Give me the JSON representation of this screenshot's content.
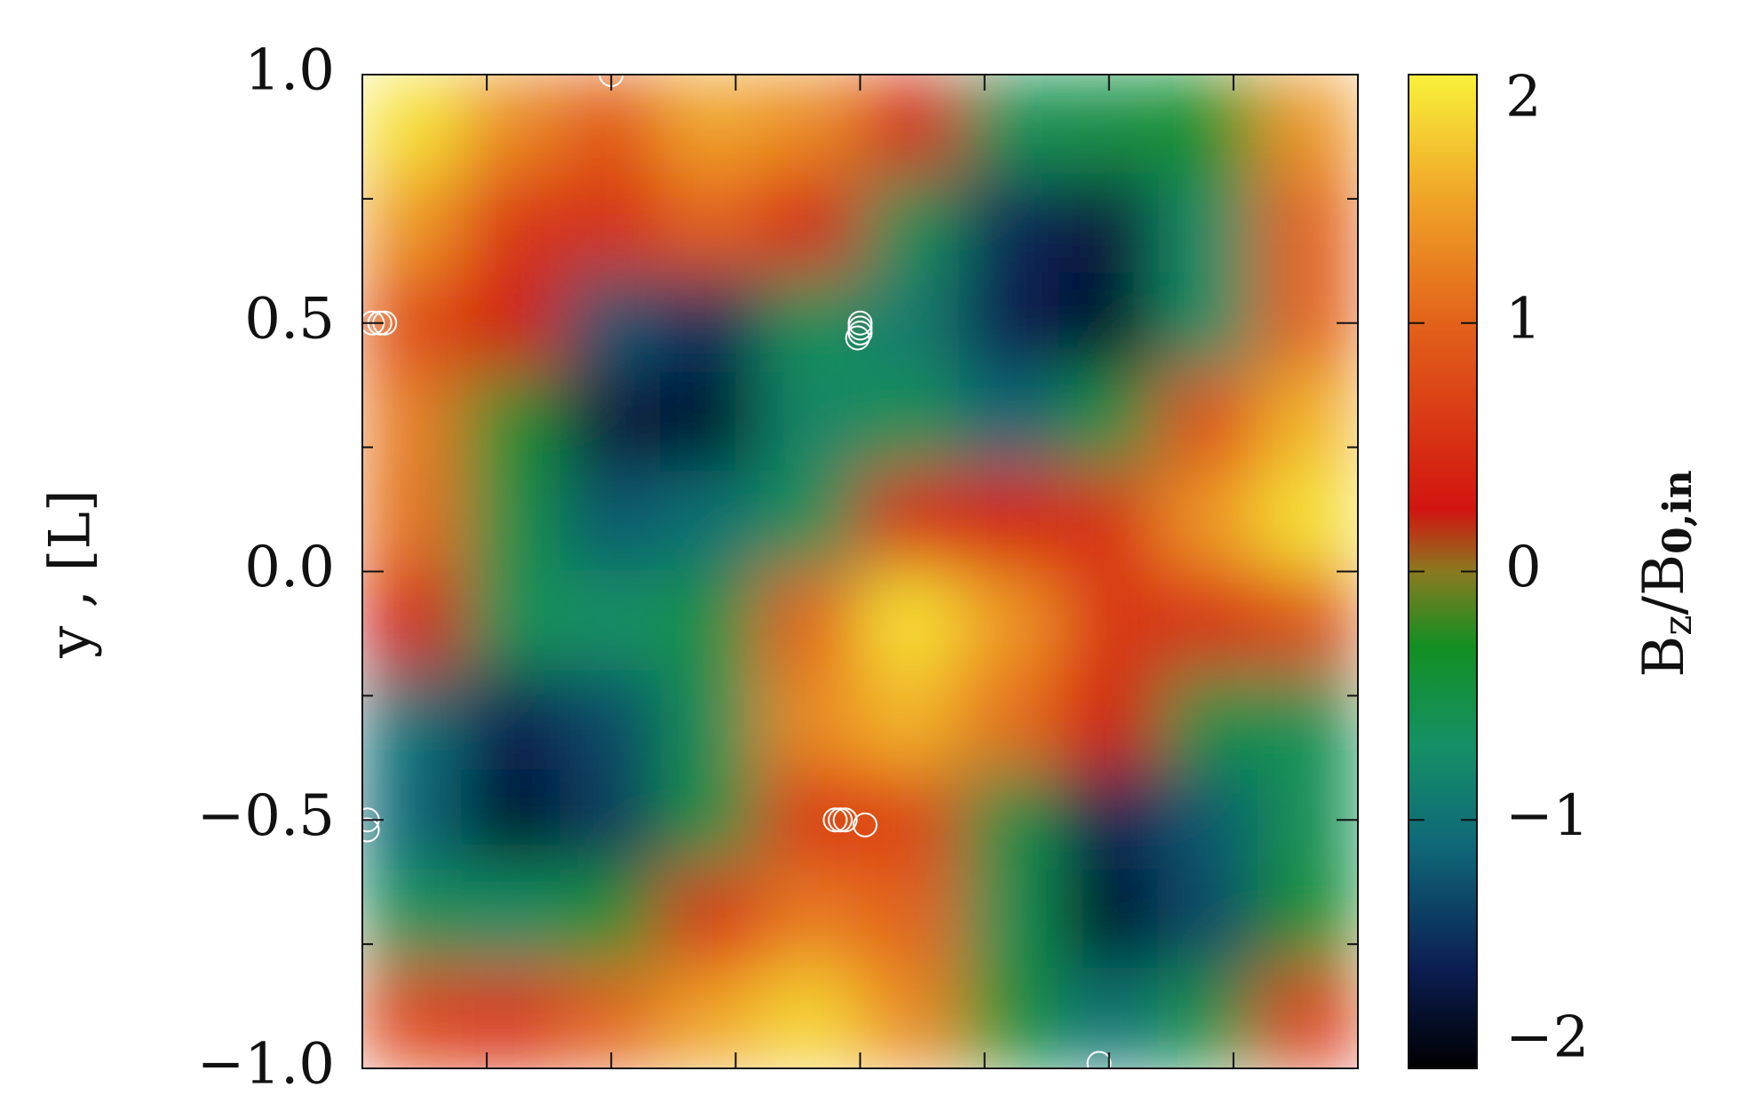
{
  "chart_data": {
    "type": "heatmap",
    "y_label": "y , [L]",
    "colorbar_label": [
      "B",
      "z",
      "/B",
      "0,in"
    ],
    "xlim": [
      -1,
      1
    ],
    "ylim": [
      -1,
      1
    ],
    "xticks": [
      -0.75,
      -0.5,
      -0.25,
      0,
      0.25,
      0.5,
      0.75
    ],
    "yticks": [
      {
        "value": -1,
        "label": "−1.0"
      },
      {
        "value": -0.5,
        "label": "−0.5"
      },
      {
        "value": 0,
        "label": "0.0"
      },
      0.5,
      {
        "value": 1,
        "label": "1.0"
      }
    ],
    "yminor_ticks": [
      -0.75,
      -0.25,
      0.25,
      0.75
    ],
    "x": [
      -0.9,
      -0.7,
      -0.5,
      -0.3,
      -0.1,
      0.1,
      0.3,
      0.5,
      0.7,
      0.9
    ],
    "y": [
      0.9,
      0.7,
      0.5,
      0.3,
      0.1,
      -0.1,
      -0.3,
      -0.5,
      -0.7,
      -0.9
    ],
    "z": [
      [
        1.9,
        1.3,
        0.9,
        1.5,
        1.3,
        0.4,
        -0.6,
        -0.5,
        -0.3,
        1.4
      ],
      [
        1.4,
        0.6,
        0.5,
        1.0,
        0.4,
        -0.6,
        -1.5,
        -1.7,
        -0.7,
        1.0
      ],
      [
        0.8,
        0.3,
        -1.2,
        -1.5,
        -0.6,
        -0.9,
        -1.6,
        -1.8,
        -0.7,
        1.0
      ],
      [
        1.2,
        -0.4,
        -1.7,
        -1.8,
        -0.8,
        -0.6,
        -1.1,
        -0.5,
        0.8,
        1.6
      ],
      [
        1.1,
        -0.5,
        -1.2,
        -1.0,
        -0.6,
        0.4,
        0.3,
        0.5,
        1.4,
        1.9
      ],
      [
        0.3,
        -0.6,
        -0.7,
        -0.5,
        1.0,
        1.9,
        1.4,
        0.6,
        0.5,
        0.8
      ],
      [
        -1.0,
        -1.6,
        -1.3,
        -0.6,
        1.3,
        1.6,
        1.1,
        0.3,
        -0.5,
        -0.6
      ],
      [
        -1.1,
        -1.8,
        -1.4,
        -0.5,
        0.6,
        0.7,
        -0.5,
        -1.6,
        -1.2,
        -0.6
      ],
      [
        -0.6,
        -0.7,
        -0.4,
        0.5,
        1.2,
        1.0,
        -0.6,
        -1.8,
        -1.3,
        -0.4
      ],
      [
        0.7,
        0.5,
        1.0,
        1.5,
        1.8,
        1.3,
        -0.4,
        -1.0,
        -0.5,
        0.6
      ]
    ],
    "clim": [
      -2,
      2
    ],
    "cticks": [
      {
        "value": -2,
        "label": "−2"
      },
      {
        "value": -1,
        "label": "−1"
      },
      0,
      1,
      2
    ],
    "colorscale": [
      [
        -2,
        "#000000"
      ],
      [
        -1.6,
        "#0b1d52"
      ],
      [
        -1.1,
        "#0f6878"
      ],
      [
        -0.7,
        "#159066"
      ],
      [
        -0.3,
        "#128f22"
      ],
      [
        0,
        "#8a7a20"
      ],
      [
        0.25,
        "#d21410"
      ],
      [
        1,
        "#e2621a"
      ],
      [
        1.5,
        "#f0a428"
      ],
      [
        2,
        "#f8f23a"
      ]
    ],
    "markers": {
      "color": "#ffffff",
      "x": [
        -0.5,
        -0.98,
        -0.965,
        -0.955,
        0.0,
        0.0,
        0.0,
        -0.005,
        -0.99,
        -0.99,
        -0.05,
        -0.04,
        -0.03,
        0.01,
        0.48
      ],
      "y": [
        1.0,
        0.5,
        0.5,
        0.5,
        0.5,
        0.49,
        0.48,
        0.47,
        -0.5,
        -0.52,
        -0.5,
        -0.5,
        -0.5,
        -0.51,
        -0.99
      ]
    }
  }
}
